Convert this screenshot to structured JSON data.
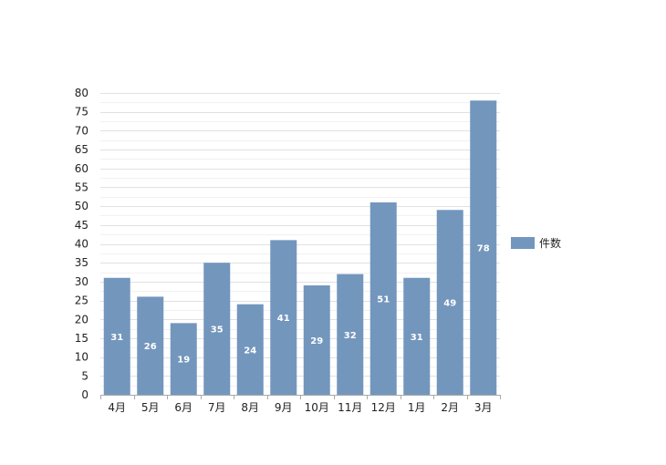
{
  "chart_data": {
    "type": "bar",
    "categories": [
      "4月",
      "5月",
      "6月",
      "7月",
      "8月",
      "9月",
      "10月",
      "11月",
      "12月",
      "1月",
      "2月",
      "3月"
    ],
    "series": [
      {
        "name": "件数",
        "values": [
          31,
          26,
          19,
          35,
          24,
          41,
          29,
          32,
          51,
          31,
          49,
          78
        ],
        "color": "#7396bd"
      }
    ],
    "title": "",
    "xlabel": "",
    "ylabel": "",
    "ylim": [
      0,
      80
    ],
    "y_ticks": [
      0,
      5,
      10,
      15,
      20,
      25,
      30,
      35,
      40,
      45,
      50,
      55,
      60,
      65,
      70,
      75,
      80
    ],
    "y_minor_step": 2.5,
    "grid": true,
    "data_labels": true,
    "legend_position": "right"
  },
  "colors": {
    "bar": "#7396bd",
    "grid_major": "#e1e1e1",
    "grid_minor": "#f1f1f1",
    "axis": "#aaaaaa",
    "text": "#222222"
  }
}
